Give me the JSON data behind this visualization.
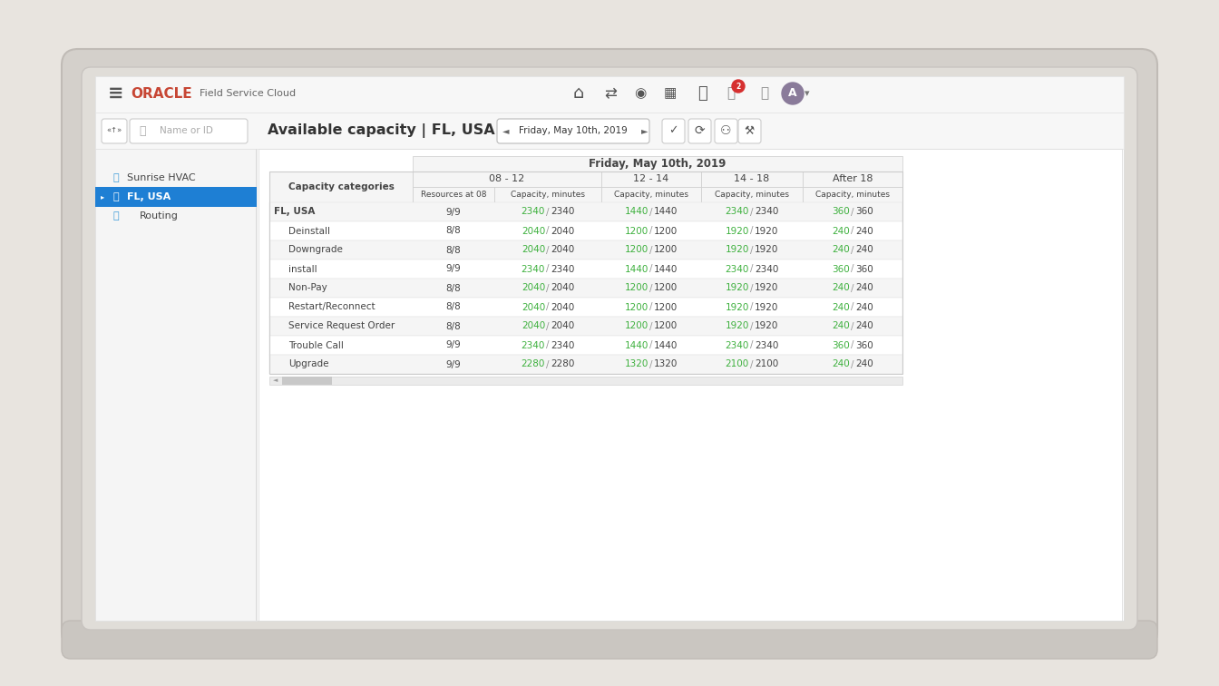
{
  "title": "Available capacity | FL, USA",
  "date_label": "Friday, May 10th, 2019",
  "nav_labels": [
    "Sunrise HVAC",
    "FL, USA",
    "Routing"
  ],
  "selected_nav": "FL, USA",
  "rows": [
    {
      "name": "FL, USA",
      "bold": true,
      "indent": 0,
      "res": "9/9",
      "v08_cap": "2340",
      "v08_tot": "2340",
      "v12_cap": "1440",
      "v12_tot": "1440",
      "v14_cap": "2340",
      "v14_tot": "2340",
      "v18_cap": "360",
      "v18_tot": "360"
    },
    {
      "name": "Deinstall",
      "bold": false,
      "indent": 1,
      "res": "8/8",
      "v08_cap": "2040",
      "v08_tot": "2040",
      "v12_cap": "1200",
      "v12_tot": "1200",
      "v14_cap": "1920",
      "v14_tot": "1920",
      "v18_cap": "240",
      "v18_tot": "240"
    },
    {
      "name": "Downgrade",
      "bold": false,
      "indent": 1,
      "res": "8/8",
      "v08_cap": "2040",
      "v08_tot": "2040",
      "v12_cap": "1200",
      "v12_tot": "1200",
      "v14_cap": "1920",
      "v14_tot": "1920",
      "v18_cap": "240",
      "v18_tot": "240"
    },
    {
      "name": "install",
      "bold": false,
      "indent": 1,
      "res": "9/9",
      "v08_cap": "2340",
      "v08_tot": "2340",
      "v12_cap": "1440",
      "v12_tot": "1440",
      "v14_cap": "2340",
      "v14_tot": "2340",
      "v18_cap": "360",
      "v18_tot": "360"
    },
    {
      "name": "Non-Pay",
      "bold": false,
      "indent": 1,
      "res": "8/8",
      "v08_cap": "2040",
      "v08_tot": "2040",
      "v12_cap": "1200",
      "v12_tot": "1200",
      "v14_cap": "1920",
      "v14_tot": "1920",
      "v18_cap": "240",
      "v18_tot": "240"
    },
    {
      "name": "Restart/Reconnect",
      "bold": false,
      "indent": 1,
      "res": "8/8",
      "v08_cap": "2040",
      "v08_tot": "2040",
      "v12_cap": "1200",
      "v12_tot": "1200",
      "v14_cap": "1920",
      "v14_tot": "1920",
      "v18_cap": "240",
      "v18_tot": "240"
    },
    {
      "name": "Service Request Order",
      "bold": false,
      "indent": 1,
      "res": "8/8",
      "v08_cap": "2040",
      "v08_tot": "2040",
      "v12_cap": "1200",
      "v12_tot": "1200",
      "v14_cap": "1920",
      "v14_tot": "1920",
      "v18_cap": "240",
      "v18_tot": "240"
    },
    {
      "name": "Trouble Call",
      "bold": false,
      "indent": 1,
      "res": "9/9",
      "v08_cap": "2340",
      "v08_tot": "2340",
      "v12_cap": "1440",
      "v12_tot": "1440",
      "v14_cap": "2340",
      "v14_tot": "2340",
      "v18_cap": "360",
      "v18_tot": "360"
    },
    {
      "name": "Upgrade",
      "bold": false,
      "indent": 1,
      "res": "9/9",
      "v08_cap": "2280",
      "v08_tot": "2280",
      "v12_cap": "1320",
      "v12_tot": "1320",
      "v14_cap": "2100",
      "v14_tot": "2100",
      "v18_cap": "240",
      "v18_tot": "240"
    }
  ],
  "laptop_outer_color": "#d4d0cb",
  "laptop_outer_edge": "#c0bbb6",
  "laptop_bezel_color": "#e0ddd8",
  "laptop_bezel_edge": "#c8c4c0",
  "screen_color": "#ffffff",
  "base_color": "#cac6c1",
  "bg_color": "#e8e4df",
  "top_bar_bg": "#f7f7f7",
  "top_bar_border": "#e2e2e2",
  "second_bar_bg": "#f7f7f7",
  "second_bar_border": "#e2e2e2",
  "nav_bg": "#f5f5f5",
  "nav_border": "#e0e0e0",
  "nav_selected_bg": "#1e7fd4",
  "nav_selected_fg": "#ffffff",
  "nav_fg": "#444444",
  "content_bg": "#ffffff",
  "content_border": "#d8d8d8",
  "table_header_bg": "#f5f5f5",
  "table_header_border": "#cccccc",
  "row_even_bg": "#f5f5f5",
  "row_odd_bg": "#ffffff",
  "row_border": "#e0e0e0",
  "green_color": "#3db03d",
  "dark_color": "#444444",
  "oracle_red": "#c74634",
  "title_color": "#333333",
  "figsize": [
    13.44,
    7.56
  ],
  "dpi": 100
}
